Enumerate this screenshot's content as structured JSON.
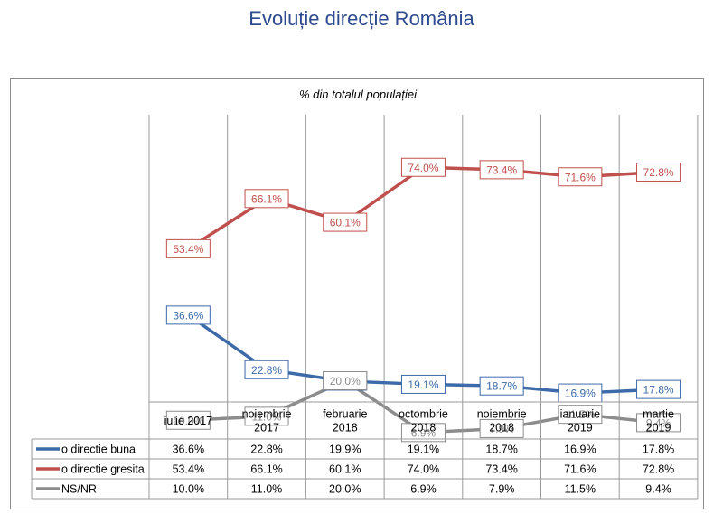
{
  "page": {
    "title": "Evoluție direcție România"
  },
  "chart_data": {
    "type": "line",
    "subtitle": "% din totalul populației",
    "categories": [
      [
        "iulie 2017"
      ],
      [
        "noiembrie",
        "2017"
      ],
      [
        "februarie",
        "2018"
      ],
      [
        "octombrie",
        "2018"
      ],
      [
        "noiembrie",
        "2018"
      ],
      [
        "ianuarie",
        "2019"
      ],
      [
        "martie",
        "2019"
      ]
    ],
    "series": [
      {
        "name": "o directie buna",
        "color": "#3d6aa8",
        "values": [
          36.6,
          22.8,
          19.9,
          19.1,
          18.7,
          16.9,
          17.8
        ],
        "labels": [
          "36.6%",
          "22.8%",
          "19.9%",
          "19.1%",
          "18.7%",
          "16.9%",
          "17.8%"
        ]
      },
      {
        "name": "o directie gresita",
        "color": "#c0504d",
        "values": [
          53.4,
          66.1,
          60.1,
          74.0,
          73.4,
          71.6,
          72.8
        ],
        "labels": [
          "53.4%",
          "66.1%",
          "60.1%",
          "74.0%",
          "73.4%",
          "71.6%",
          "72.8%"
        ]
      },
      {
        "name": "NS/NR",
        "color": "#8c8c8c",
        "values": [
          10.0,
          11.0,
          20.0,
          6.9,
          7.9,
          11.5,
          9.4
        ],
        "labels": [
          "10.0%",
          "11.0%",
          "20.0%",
          "6.9%",
          "7.9%",
          "11.5%",
          "9.4%"
        ]
      }
    ],
    "legend": "table-below",
    "grid": "vertical"
  }
}
